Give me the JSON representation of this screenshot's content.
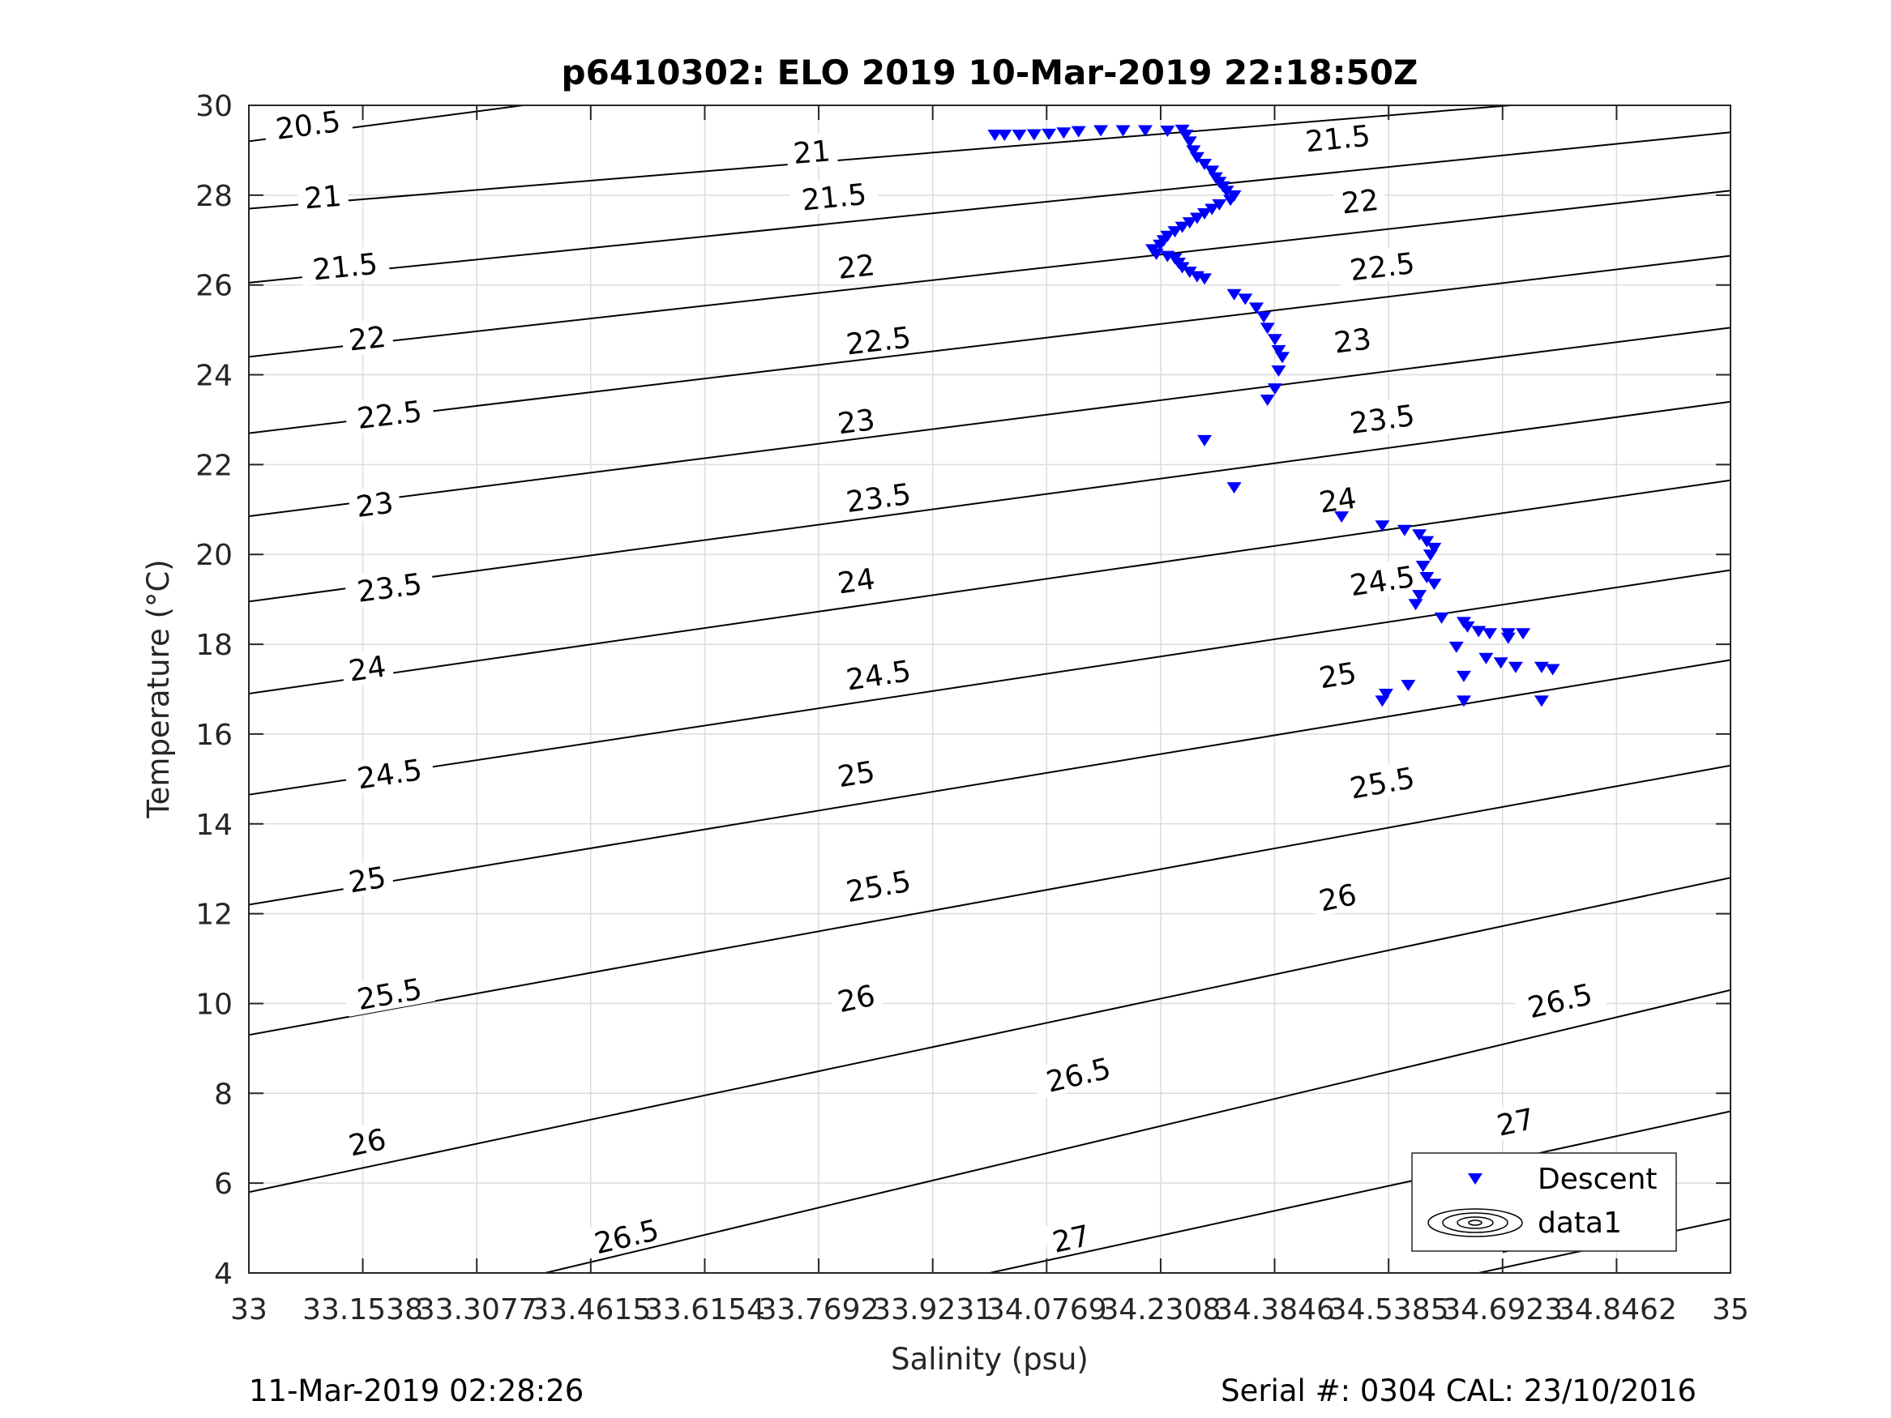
{
  "chart_data": {
    "type": "scatter",
    "title": "p6410302: ELO 2019 10-Mar-2019 22:18:50Z",
    "xlabel": "Salinity (psu)",
    "ylabel": "Temperature (°C)",
    "xlim": [
      33,
      35
    ],
    "ylim": [
      4,
      30
    ],
    "grid": true,
    "x_ticks": [
      33,
      33.1538,
      33.3077,
      33.4615,
      33.6154,
      33.7692,
      33.9231,
      34.0769,
      34.2308,
      34.3846,
      34.5385,
      34.6923,
      34.8462,
      35
    ],
    "x_tick_labels": [
      "33",
      "33.1538",
      "33.3077",
      "33.4615",
      "33.6154",
      "33.7692",
      "33.9231",
      "34.0769",
      "34.2308",
      "34.3846",
      "34.5385",
      "34.6923",
      "34.8462",
      "35"
    ],
    "y_ticks": [
      4,
      6,
      8,
      10,
      12,
      14,
      16,
      18,
      20,
      22,
      24,
      26,
      28,
      30
    ],
    "y_tick_labels": [
      "4",
      "6",
      "8",
      "10",
      "12",
      "14",
      "16",
      "18",
      "20",
      "22",
      "24",
      "26",
      "28",
      "30"
    ],
    "legend": {
      "position": "bottom-right",
      "entries": [
        "Descent",
        "data1"
      ]
    },
    "series": [
      {
        "name": "Descent",
        "marker": "down-triangle",
        "color": "#0000ff",
        "points": [
          [
            34.007,
            29.35
          ],
          [
            34.02,
            29.35
          ],
          [
            34.04,
            29.35
          ],
          [
            34.06,
            29.36
          ],
          [
            34.08,
            29.37
          ],
          [
            34.1,
            29.4
          ],
          [
            34.12,
            29.43
          ],
          [
            34.15,
            29.45
          ],
          [
            34.18,
            29.45
          ],
          [
            34.21,
            29.45
          ],
          [
            34.24,
            29.44
          ],
          [
            34.26,
            29.46
          ],
          [
            34.265,
            29.35
          ],
          [
            34.27,
            29.2
          ],
          [
            34.275,
            29.0
          ],
          [
            34.28,
            28.85
          ],
          [
            34.29,
            28.7
          ],
          [
            34.3,
            28.55
          ],
          [
            34.305,
            28.4
          ],
          [
            34.31,
            28.3
          ],
          [
            34.315,
            28.2
          ],
          [
            34.32,
            28.1
          ],
          [
            34.33,
            28.0
          ],
          [
            34.325,
            27.9
          ],
          [
            34.31,
            27.8
          ],
          [
            34.3,
            27.7
          ],
          [
            34.29,
            27.6
          ],
          [
            34.28,
            27.5
          ],
          [
            34.27,
            27.4
          ],
          [
            34.26,
            27.3
          ],
          [
            34.25,
            27.2
          ],
          [
            34.24,
            27.1
          ],
          [
            34.235,
            27.0
          ],
          [
            34.23,
            26.9
          ],
          [
            34.22,
            26.8
          ],
          [
            34.225,
            26.7
          ],
          [
            34.24,
            26.65
          ],
          [
            34.25,
            26.6
          ],
          [
            34.255,
            26.5
          ],
          [
            34.26,
            26.4
          ],
          [
            34.27,
            26.3
          ],
          [
            34.28,
            26.2
          ],
          [
            34.29,
            26.15
          ],
          [
            34.33,
            25.8
          ],
          [
            34.345,
            25.7
          ],
          [
            34.36,
            25.5
          ],
          [
            34.37,
            25.3
          ],
          [
            34.375,
            25.05
          ],
          [
            34.385,
            24.8
          ],
          [
            34.39,
            24.55
          ],
          [
            34.395,
            24.4
          ],
          [
            34.39,
            24.1
          ],
          [
            34.385,
            23.7
          ],
          [
            34.375,
            23.45
          ],
          [
            34.29,
            22.55
          ],
          [
            34.33,
            21.5
          ],
          [
            34.475,
            20.85
          ],
          [
            34.53,
            20.65
          ],
          [
            34.56,
            20.55
          ],
          [
            34.58,
            20.45
          ],
          [
            34.59,
            20.3
          ],
          [
            34.6,
            20.15
          ],
          [
            34.595,
            20.0
          ],
          [
            34.585,
            19.75
          ],
          [
            34.59,
            19.5
          ],
          [
            34.6,
            19.35
          ],
          [
            34.58,
            19.1
          ],
          [
            34.575,
            18.9
          ],
          [
            34.61,
            18.6
          ],
          [
            34.64,
            18.5
          ],
          [
            34.645,
            18.4
          ],
          [
            34.66,
            18.3
          ],
          [
            34.675,
            18.25
          ],
          [
            34.7,
            18.25
          ],
          [
            34.72,
            18.25
          ],
          [
            34.7,
            18.15
          ],
          [
            34.63,
            17.95
          ],
          [
            34.67,
            17.7
          ],
          [
            34.69,
            17.6
          ],
          [
            34.71,
            17.5
          ],
          [
            34.745,
            17.5
          ],
          [
            34.76,
            17.45
          ],
          [
            34.745,
            16.75
          ],
          [
            34.64,
            16.75
          ],
          [
            34.64,
            17.3
          ],
          [
            34.53,
            16.75
          ],
          [
            34.535,
            16.9
          ],
          [
            34.565,
            17.1
          ]
        ]
      },
      {
        "name": "data1",
        "type": "contour",
        "color": "#000000",
        "levels": [
          20.5,
          21,
          21.5,
          22,
          22.5,
          23,
          23.5,
          24,
          24.5,
          25,
          25.5,
          26,
          26.5,
          27,
          27.5
        ],
        "lines": [
          {
            "level": "20.5",
            "start": [
              33,
              29.2
            ],
            "end": [
              33.37,
              30
            ],
            "label_at": [
              33.08,
              29.55
            ]
          },
          {
            "level": "21",
            "start": [
              33,
              27.7
            ],
            "end": [
              35,
              30.4
            ],
            "label_at": [
              33.1,
              27.95
            ]
          },
          {
            "level": "21",
            "start": [
              33,
              27.7
            ],
            "end": [
              35,
              30.4
            ],
            "label_at": [
              33.76,
              28.95
            ]
          },
          {
            "level": "21.5",
            "start": [
              33,
              26.05
            ],
            "end": [
              35,
              29.4
            ],
            "label_at": [
              33.13,
              26.4
            ]
          },
          {
            "level": "21.5",
            "start": [
              33,
              26.05
            ],
            "end": [
              35,
              29.4
            ],
            "label_at": [
              33.79,
              27.95
            ]
          },
          {
            "level": "21.5",
            "start": [
              33,
              26.05
            ],
            "end": [
              35,
              29.4
            ],
            "label_at": [
              34.47,
              29.25
            ]
          },
          {
            "level": "22",
            "start": [
              33,
              24.4
            ],
            "end": [
              35,
              28.1
            ],
            "label_at": [
              33.16,
              24.8
            ]
          },
          {
            "level": "22",
            "start": [
              33,
              24.4
            ],
            "end": [
              35,
              28.1
            ],
            "label_at": [
              33.82,
              26.4
            ]
          },
          {
            "level": "22",
            "start": [
              33,
              24.4
            ],
            "end": [
              35,
              28.1
            ],
            "label_at": [
              34.5,
              27.85
            ]
          },
          {
            "level": "22.5",
            "start": [
              33,
              22.7
            ],
            "end": [
              35,
              26.65
            ],
            "label_at": [
              33.19,
              23.1
            ]
          },
          {
            "level": "22.5",
            "start": [
              33,
              22.7
            ],
            "end": [
              35,
              26.65
            ],
            "label_at": [
              33.85,
              24.75
            ]
          },
          {
            "level": "22.5",
            "start": [
              33,
              22.7
            ],
            "end": [
              35,
              26.65
            ],
            "label_at": [
              34.53,
              26.4
            ]
          },
          {
            "level": "23",
            "start": [
              33,
              20.85
            ],
            "end": [
              35,
              25.05
            ],
            "label_at": [
              33.17,
              21.1
            ]
          },
          {
            "level": "23",
            "start": [
              33,
              20.85
            ],
            "end": [
              35,
              25.05
            ],
            "label_at": [
              33.82,
              22.95
            ]
          },
          {
            "level": "23",
            "start": [
              33,
              20.85
            ],
            "end": [
              35,
              25.05
            ],
            "label_at": [
              34.49,
              24.75
            ]
          },
          {
            "level": "23.5",
            "start": [
              33,
              18.95
            ],
            "end": [
              35,
              23.4
            ],
            "label_at": [
              33.19,
              19.25
            ]
          },
          {
            "level": "23.5",
            "start": [
              33,
              18.95
            ],
            "end": [
              35,
              23.4
            ],
            "label_at": [
              33.85,
              21.25
            ]
          },
          {
            "level": "23.5",
            "start": [
              33,
              18.95
            ],
            "end": [
              35,
              23.4
            ],
            "label_at": [
              34.53,
              23.0
            ]
          },
          {
            "level": "24",
            "start": [
              33,
              16.9
            ],
            "end": [
              35,
              21.65
            ],
            "label_at": [
              33.16,
              17.45
            ]
          },
          {
            "level": "24",
            "start": [
              33,
              16.9
            ],
            "end": [
              35,
              21.65
            ],
            "label_at": [
              33.82,
              19.4
            ]
          },
          {
            "level": "24",
            "start": [
              33,
              16.9
            ],
            "end": [
              35,
              21.65
            ],
            "label_at": [
              34.47,
              21.2
            ]
          },
          {
            "level": "24.5",
            "start": [
              33,
              14.65
            ],
            "end": [
              35,
              19.65
            ],
            "label_at": [
              33.19,
              15.1
            ]
          },
          {
            "level": "24.5",
            "start": [
              33,
              14.65
            ],
            "end": [
              35,
              19.65
            ],
            "label_at": [
              33.85,
              17.3
            ]
          },
          {
            "level": "24.5",
            "start": [
              33,
              14.65
            ],
            "end": [
              35,
              19.65
            ],
            "label_at": [
              34.53,
              19.4
            ]
          },
          {
            "level": "25",
            "start": [
              33,
              12.2
            ],
            "end": [
              35,
              17.65
            ],
            "label_at": [
              33.16,
              12.75
            ]
          },
          {
            "level": "25",
            "start": [
              33,
              12.2
            ],
            "end": [
              35,
              17.65
            ],
            "label_at": [
              33.82,
              15.1
            ]
          },
          {
            "level": "25",
            "start": [
              33,
              12.2
            ],
            "end": [
              35,
              17.65
            ],
            "label_at": [
              34.47,
              17.3
            ]
          },
          {
            "level": "25.5",
            "start": [
              33,
              9.3
            ],
            "end": [
              35,
              15.3
            ],
            "label_at": [
              33.19,
              10.2
            ]
          },
          {
            "level": "25.5",
            "start": [
              33,
              9.3
            ],
            "end": [
              35,
              15.3
            ],
            "label_at": [
              33.85,
              12.6
            ]
          },
          {
            "level": "25.5",
            "start": [
              33,
              9.3
            ],
            "end": [
              35,
              15.3
            ],
            "label_at": [
              34.53,
              14.9
            ]
          },
          {
            "level": "26",
            "start": [
              33,
              5.8
            ],
            "end": [
              35,
              12.8
            ],
            "label_at": [
              33.16,
              6.9
            ]
          },
          {
            "level": "26",
            "start": [
              33,
              5.8
            ],
            "end": [
              35,
              12.8
            ],
            "label_at": [
              33.82,
              10.1
            ]
          },
          {
            "level": "26",
            "start": [
              33,
              5.8
            ],
            "end": [
              35,
              12.8
            ],
            "label_at": [
              34.47,
              12.35
            ]
          },
          {
            "level": "26.5",
            "start": [
              33.4,
              4
            ],
            "end": [
              35,
              10.3
            ],
            "label_at": [
              33.51,
              4.8
            ]
          },
          {
            "level": "26.5",
            "start": [
              33.4,
              4
            ],
            "end": [
              35,
              10.3
            ],
            "label_at": [
              34.12,
              8.4
            ]
          },
          {
            "level": "26.5",
            "start": [
              33.4,
              4
            ],
            "end": [
              35,
              10.3
            ],
            "label_at": [
              34.77,
              10.05
            ]
          },
          {
            "level": "27",
            "start": [
              34.0,
              4
            ],
            "end": [
              35,
              7.6
            ],
            "label_at": [
              34.11,
              4.75
            ]
          },
          {
            "level": "27",
            "start": [
              34.0,
              4
            ],
            "end": [
              35,
              7.6
            ],
            "label_at": [
              34.71,
              7.35
            ]
          },
          {
            "level": "27.5",
            "start": [
              34.66,
              4
            ],
            "end": [
              35,
              5.2
            ],
            "label_at": [
              34.73,
              4.8
            ]
          }
        ]
      }
    ]
  },
  "footer": {
    "left": "11-Mar-2019 02:28:26",
    "right": "Serial #: 0304  CAL: 23/10/2016"
  }
}
